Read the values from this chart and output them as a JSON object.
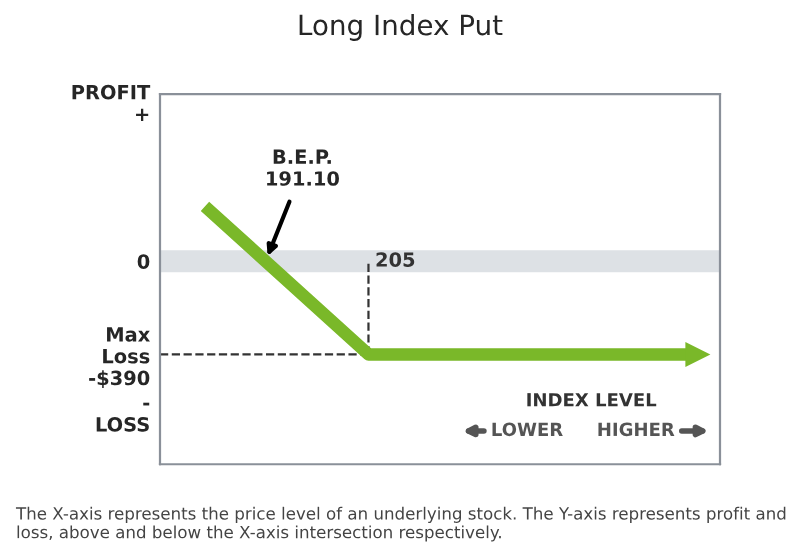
{
  "chart_data": {
    "type": "line",
    "title": "Long Index Put",
    "xlabel": "INDEX LEVEL",
    "categories": [
      null,
      null,
      null,
      null,
      null,
      null,
      null
    ],
    "series": [
      {
        "color": "#7ab829",
        "values": [
          230,
          -80,
          -390,
          -390,
          -390,
          -390,
          -390
        ]
      }
    ],
    "ylim": [
      -850,
      700
    ],
    "yticks": [
      {
        "value": 670,
        "label": "PROFIT\n+"
      },
      {
        "value": 0,
        "label": "0"
      },
      {
        "value": -390,
        "label": "Max\nLoss\n-$390"
      },
      {
        "value": -630,
        "label": "-\nLOSS"
      }
    ],
    "tick_labels": "y",
    "ref_lines": [
      {
        "axis": "y",
        "value": 0,
        "color": "#dde1e5",
        "line_style": "solid"
      },
      {
        "axis": "y",
        "value": -390,
        "color": "#333333",
        "line_style": "dashed"
      }
    ],
    "annotations": [
      "B.E.P.\n191.10",
      "205",
      "LOWER",
      "HIGHER",
      "The X-axis represents the price level of an underlying stock. The Y-axis represents profit and loss, above and below the X-axis intersection respectively."
    ],
    "legend": false
  }
}
